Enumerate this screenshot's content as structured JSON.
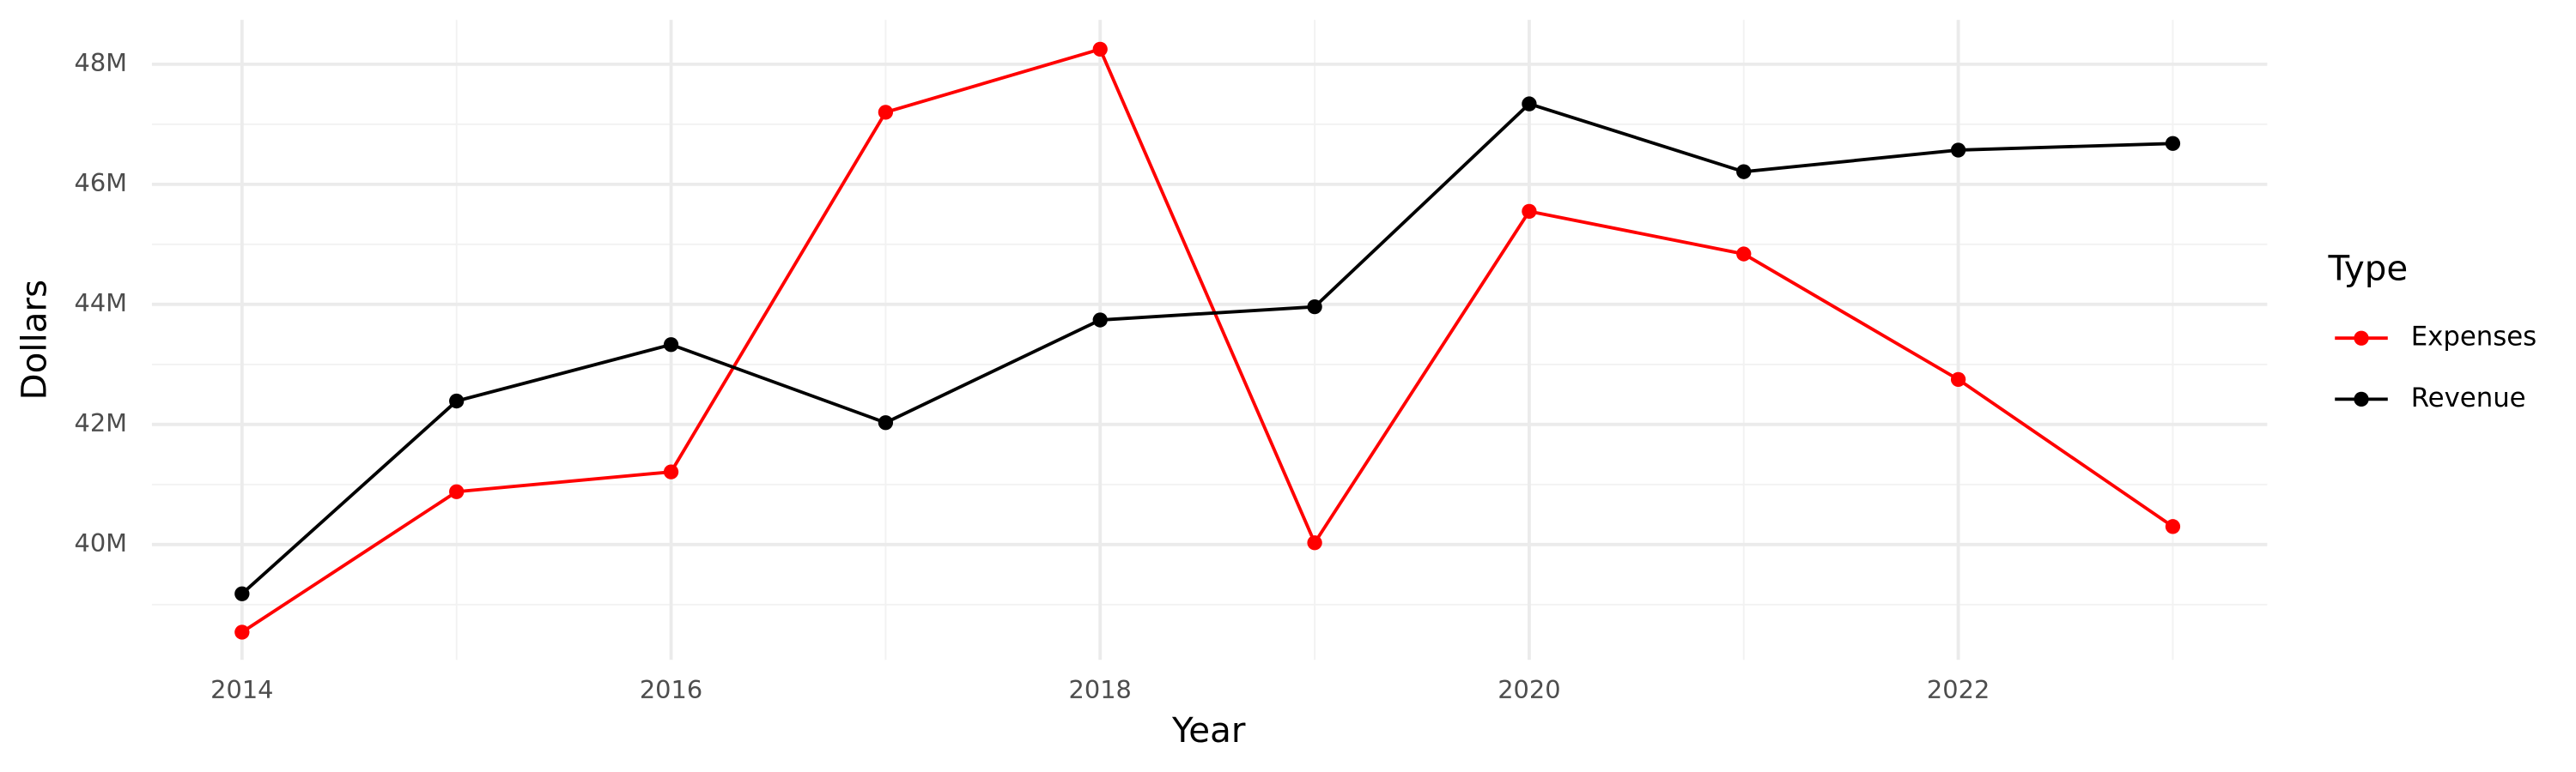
{
  "chart_data": {
    "type": "line",
    "x_label": "Year",
    "y_label": "Dollars",
    "legend_title": "Type",
    "legend_position": "right",
    "grid": true,
    "x": [
      2014,
      2015,
      2016,
      2017,
      2018,
      2019,
      2020,
      2021,
      2022,
      2023
    ],
    "series": [
      {
        "name": "Expenses",
        "color": "#ff0000",
        "values": [
          38540000,
          40880000,
          41210000,
          47200000,
          48250000,
          40030000,
          45550000,
          44840000,
          42750000,
          40300000
        ]
      },
      {
        "name": "Revenue",
        "color": "#000000",
        "values": [
          39180000,
          42390000,
          43330000,
          42030000,
          43740000,
          43960000,
          47340000,
          46210000,
          46570000,
          46680000
        ]
      }
    ],
    "xlim": [
      2013.58,
      2023.44
    ],
    "xticks": [
      2014,
      2016,
      2018,
      2020,
      2022
    ],
    "ylim": [
      38080000,
      48740000
    ],
    "yticks": [
      {
        "value": 40000000,
        "label": "40M"
      },
      {
        "value": 42000000,
        "label": "42M"
      },
      {
        "value": 44000000,
        "label": "44M"
      },
      {
        "value": 46000000,
        "label": "46M"
      },
      {
        "value": 48000000,
        "label": "48M"
      }
    ]
  }
}
